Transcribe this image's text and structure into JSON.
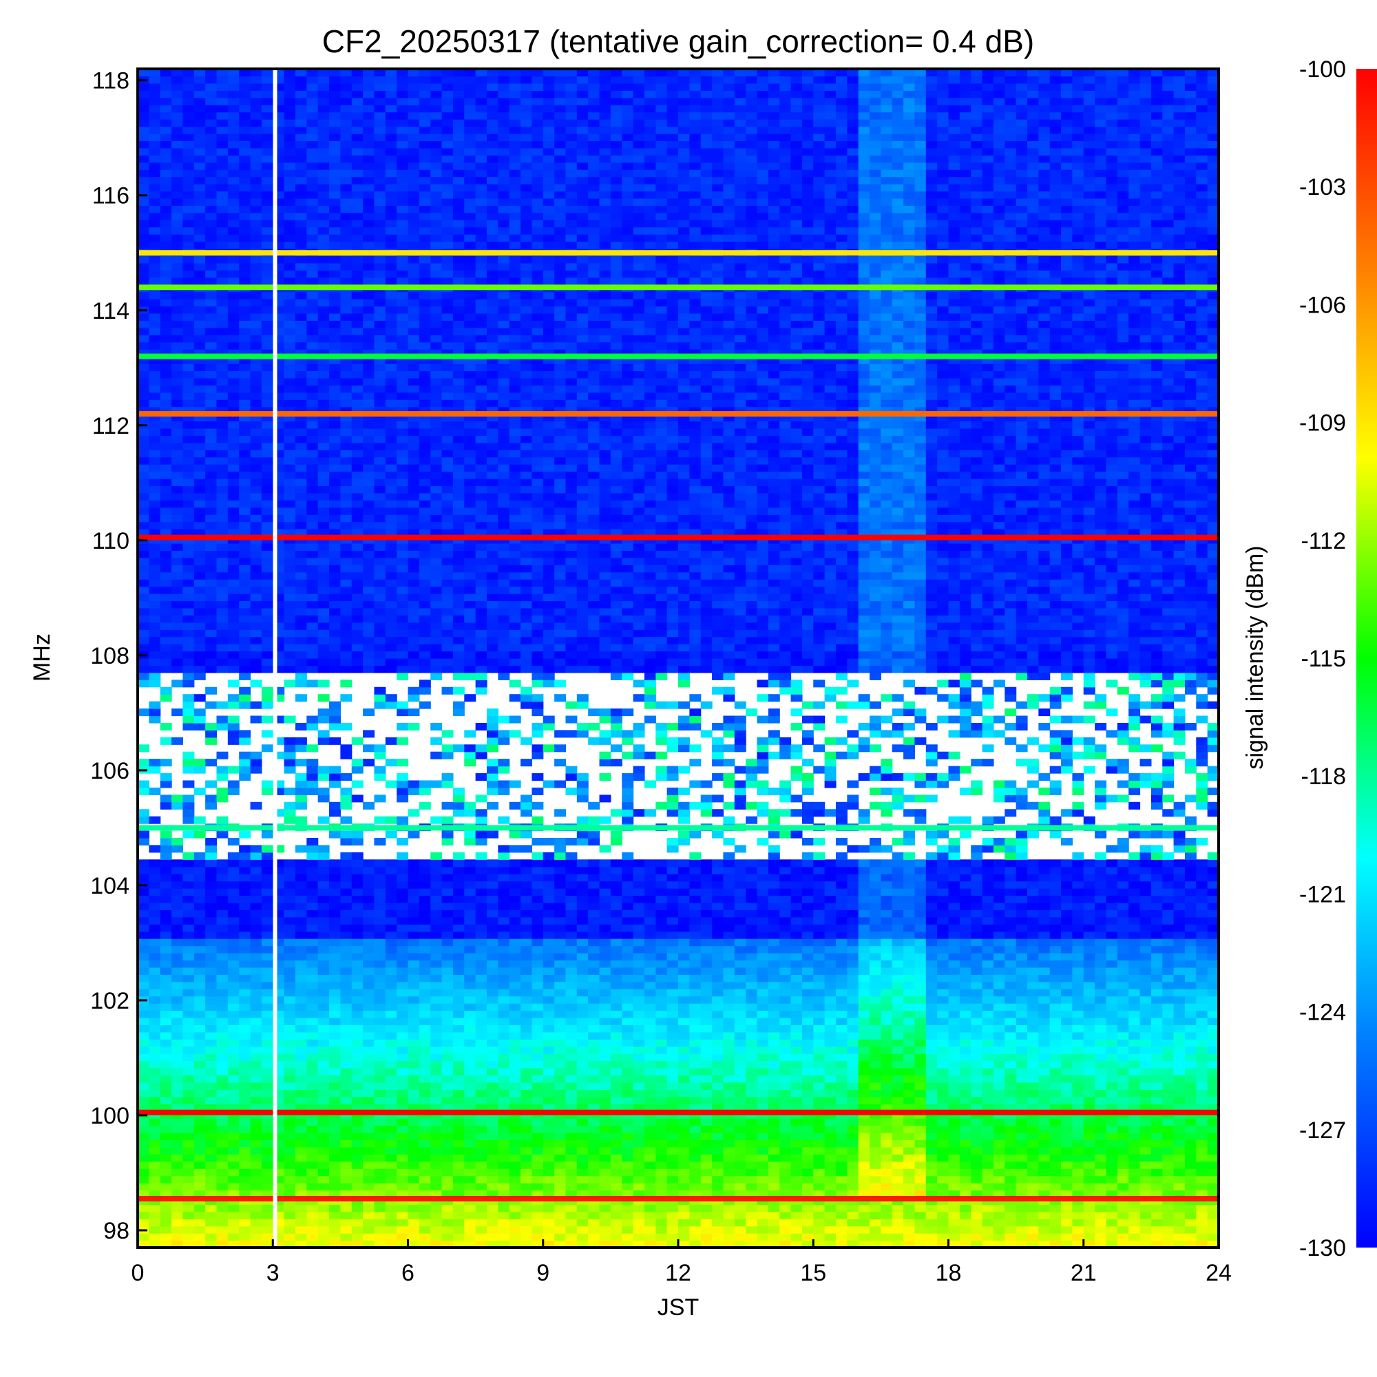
{
  "chart_data": {
    "type": "heatmap",
    "title": "CF2_20250317 (tentative gain_correction=  0.4 dB)",
    "xlabel": "JST",
    "ylabel": "MHz",
    "colorbar_label": "signal intensity (dBm)",
    "xlim": [
      0,
      24
    ],
    "ylim": [
      97.7,
      118.2
    ],
    "clim": [
      -130,
      -100
    ],
    "x_ticks": [
      "0",
      "3",
      "6",
      "9",
      "12",
      "15",
      "18",
      "21",
      "24"
    ],
    "y_ticks": [
      "98",
      "100",
      "102",
      "104",
      "106",
      "108",
      "110",
      "112",
      "114",
      "116",
      "118"
    ],
    "colorbar_ticks": [
      "-100",
      "-103",
      "-106",
      "-109",
      "-112",
      "-115",
      "-118",
      "-121",
      "-124",
      "-127",
      "-130"
    ],
    "colormap": [
      "#0000ff",
      "#0080ff",
      "#00ffff",
      "#00ff00",
      "#ffff00",
      "#ff8000",
      "#ff0000"
    ],
    "data_gap_jst": 3.05,
    "blank_bands_mhz": [
      [
        104.4,
        107.7
      ]
    ],
    "strong_carriers": [
      {
        "freq_mhz": 110.05,
        "level_dbm": -100
      },
      {
        "freq_mhz": 112.2,
        "level_dbm": -104
      },
      {
        "freq_mhz": 115.0,
        "level_dbm": -109
      },
      {
        "freq_mhz": 114.4,
        "level_dbm": -113
      },
      {
        "freq_mhz": 113.2,
        "level_dbm": -116
      },
      {
        "freq_mhz": 105.0,
        "level_dbm": -118
      },
      {
        "freq_mhz": 100.05,
        "level_dbm": -100
      },
      {
        "freq_mhz": 98.55,
        "level_dbm": -101
      }
    ]
  }
}
